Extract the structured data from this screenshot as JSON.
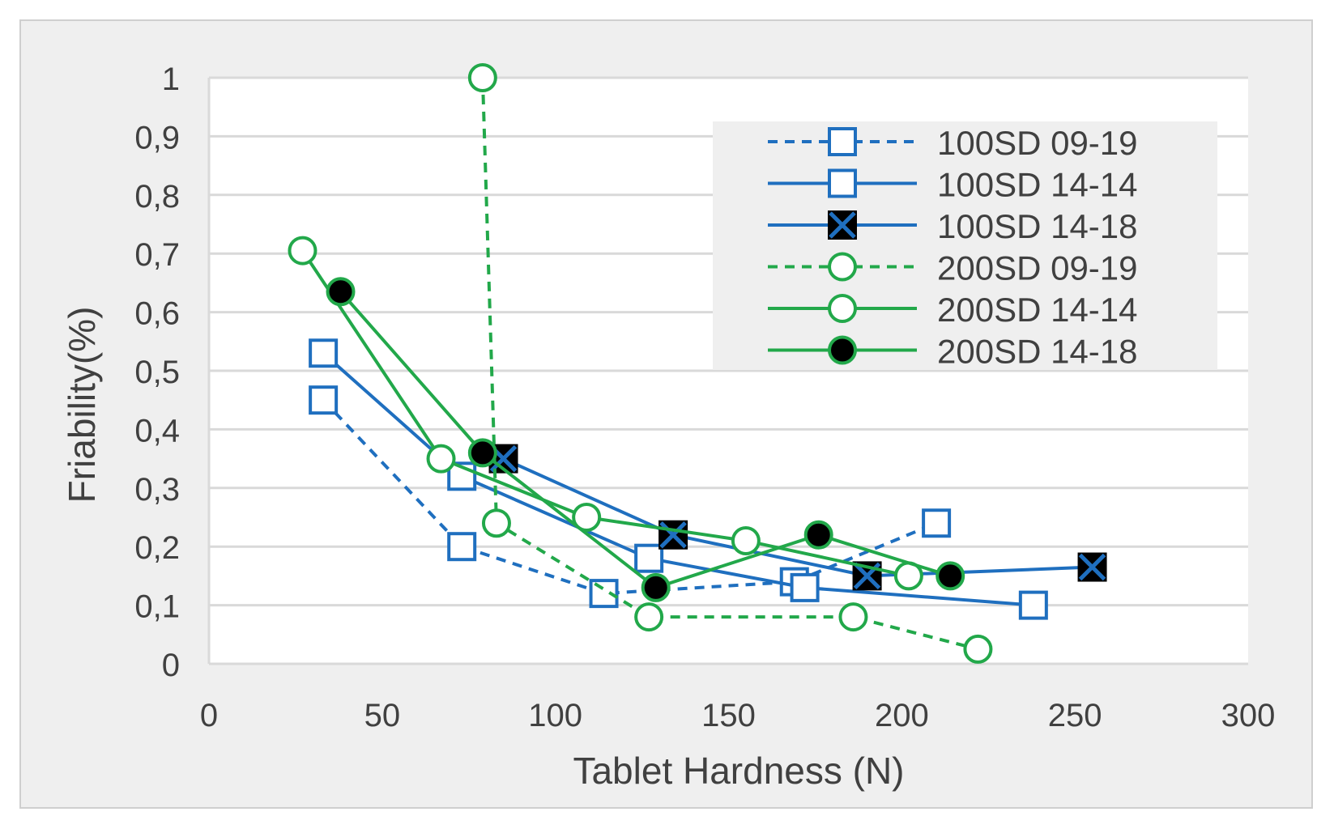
{
  "chart_data": {
    "type": "line",
    "xlabel": "Tablet Hardness (N)",
    "ylabel": "Friability(%)",
    "xlim": [
      0,
      300
    ],
    "ylim": [
      0,
      1
    ],
    "x_ticks": [
      "0",
      "50",
      "100",
      "150",
      "200",
      "250",
      "300"
    ],
    "y_ticks": [
      "0",
      "0,1",
      "0,2",
      "0,3",
      "0,4",
      "0,5",
      "0,6",
      "0,7",
      "0,8",
      "0,9",
      "1"
    ],
    "grid": "horizontal",
    "legend_position": "top-right",
    "series": [
      {
        "name": "100SD 09-19",
        "color": "#1f6fbf",
        "dash": "dashed",
        "marker": "open-square",
        "points": [
          [
            33,
            0.45
          ],
          [
            73,
            0.2
          ],
          [
            114,
            0.12
          ],
          [
            169,
            0.14
          ],
          [
            210,
            0.24
          ]
        ]
      },
      {
        "name": "100SD 14-14",
        "color": "#1f6fbf",
        "dash": "solid",
        "marker": "open-square",
        "points": [
          [
            33,
            0.53
          ],
          [
            73,
            0.32
          ],
          [
            127,
            0.18
          ],
          [
            172,
            0.13
          ],
          [
            238,
            0.1
          ]
        ]
      },
      {
        "name": "100SD 14-18",
        "color": "#1f6fbf",
        "dash": "solid",
        "marker": "x-square",
        "points": [
          [
            85,
            0.35
          ],
          [
            134,
            0.22
          ],
          [
            190,
            0.15
          ],
          [
            255,
            0.165
          ]
        ]
      },
      {
        "name": "200SD 09-19",
        "color": "#22a84a",
        "dash": "dashed",
        "marker": "open-circle",
        "points": [
          [
            79,
            1.0
          ],
          [
            83,
            0.24
          ],
          [
            127,
            0.08
          ],
          [
            186,
            0.08
          ],
          [
            222,
            0.025
          ]
        ]
      },
      {
        "name": "200SD 14-14",
        "color": "#22a84a",
        "dash": "solid",
        "marker": "open-circle",
        "points": [
          [
            27,
            0.705
          ],
          [
            67,
            0.35
          ],
          [
            109,
            0.25
          ],
          [
            155,
            0.21
          ],
          [
            202,
            0.15
          ]
        ]
      },
      {
        "name": "200SD 14-18",
        "color": "#22a84a",
        "dash": "solid",
        "marker": "filled-circle",
        "points": [
          [
            38,
            0.635
          ],
          [
            79,
            0.36
          ],
          [
            129,
            0.13
          ],
          [
            176,
            0.22
          ],
          [
            214,
            0.15
          ]
        ]
      }
    ]
  }
}
